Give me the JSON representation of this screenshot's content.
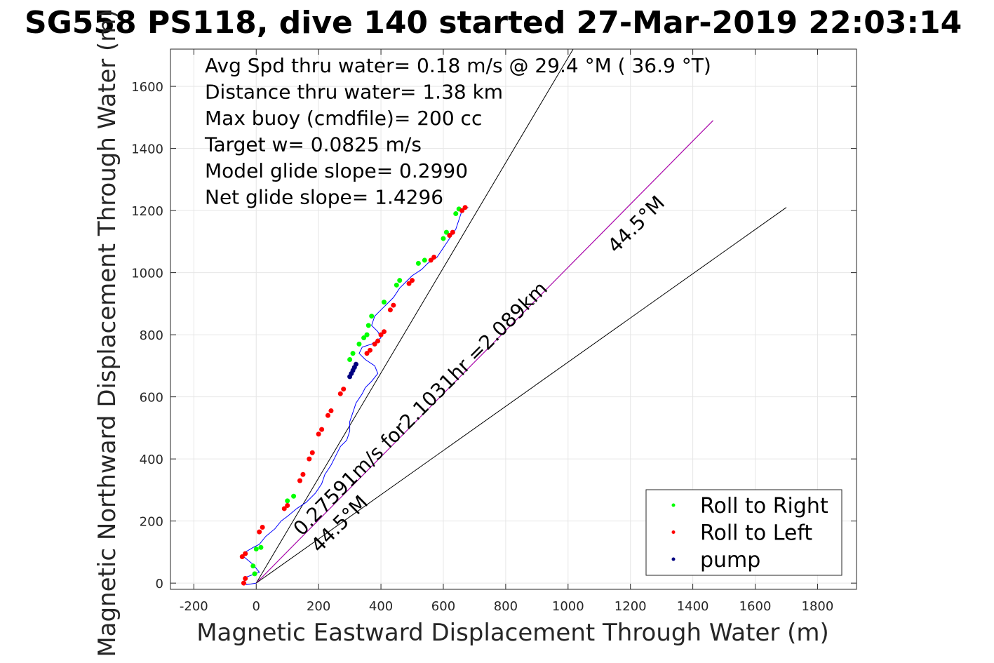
{
  "chart_data": {
    "type": "scatter",
    "title": "SG558 PS118, dive 140 started 27-Mar-2019 22:03:14",
    "xlabel": "Magnetic Eastward Displacement Through Water (m)",
    "ylabel": "Magnetic Northward Displacement Through Water (m)",
    "xlim": [
      -275,
      1925
    ],
    "ylim": [
      -20,
      1720
    ],
    "xticks": [
      -200,
      0,
      200,
      400,
      600,
      800,
      1000,
      1200,
      1400,
      1600,
      1800
    ],
    "yticks": [
      0,
      200,
      400,
      600,
      800,
      1000,
      1200,
      1400,
      1600
    ],
    "grid": true,
    "legend_position": "bottom-right",
    "info_lines": [
      "Avg Spd thru water=  0.18 m/s @  29.4 °M ( 36.9 °T)",
      "Distance thru water=  1.38 km",
      "Max buoy (cmdfile)= 200 cc",
      "Target w= 0.0825 m/s",
      "Model glide slope= 0.2990",
      "Net glide slope= 1.4296"
    ],
    "annotations": {
      "course_label_upper": "44.5°M",
      "course_label_lower": "44.5°M",
      "current_label": "0.27591m/s for2.1031hr =2.089km"
    },
    "reference_lines": [
      {
        "name": "bound-left",
        "from": [
          0,
          0
        ],
        "to": [
          1170,
          1980
        ],
        "color": "#000000"
      },
      {
        "name": "course",
        "from": [
          0,
          0
        ],
        "to": [
          1465,
          1490
        ],
        "color": "#000000"
      },
      {
        "name": "current",
        "from": [
          0,
          0
        ],
        "to": [
          1465,
          1490
        ],
        "color": "#c000c0"
      },
      {
        "name": "bound-right",
        "from": [
          0,
          0
        ],
        "to": [
          1700,
          1210
        ],
        "color": "#000000"
      }
    ],
    "track": {
      "color": "#0000ff",
      "points": [
        [
          0,
          0
        ],
        [
          -30,
          -5
        ],
        [
          -40,
          5
        ],
        [
          -30,
          20
        ],
        [
          10,
          35
        ],
        [
          -10,
          60
        ],
        [
          -40,
          85
        ],
        [
          -35,
          100
        ],
        [
          -10,
          115
        ],
        [
          10,
          125
        ],
        [
          30,
          150
        ],
        [
          60,
          175
        ],
        [
          80,
          200
        ],
        [
          100,
          215
        ],
        [
          130,
          240
        ],
        [
          160,
          260
        ],
        [
          190,
          290
        ],
        [
          210,
          320
        ],
        [
          220,
          350
        ],
        [
          240,
          380
        ],
        [
          255,
          410
        ],
        [
          270,
          440
        ],
        [
          290,
          460
        ],
        [
          300,
          490
        ],
        [
          300,
          520
        ],
        [
          310,
          550
        ],
        [
          320,
          580
        ],
        [
          340,
          610
        ],
        [
          350,
          630
        ],
        [
          370,
          650
        ],
        [
          390,
          675
        ],
        [
          380,
          700
        ],
        [
          350,
          720
        ],
        [
          330,
          740
        ],
        [
          340,
          760
        ],
        [
          370,
          770
        ],
        [
          400,
          790
        ],
        [
          390,
          810
        ],
        [
          370,
          830
        ],
        [
          380,
          860
        ],
        [
          400,
          880
        ],
        [
          420,
          900
        ],
        [
          440,
          920
        ],
        [
          460,
          950
        ],
        [
          480,
          970
        ],
        [
          500,
          990
        ],
        [
          530,
          1010
        ],
        [
          550,
          1030
        ],
        [
          580,
          1050
        ],
        [
          600,
          1080
        ],
        [
          620,
          1110
        ],
        [
          640,
          1140
        ],
        [
          650,
          1170
        ],
        [
          660,
          1200
        ],
        [
          680,
          1210
        ]
      ]
    },
    "series": [
      {
        "name": "Roll to Right",
        "color": "#00ff00",
        "marker": "dot",
        "points": [
          [
            -5,
            30
          ],
          [
            -10,
            55
          ],
          [
            0,
            110
          ],
          [
            15,
            115
          ],
          [
            100,
            265
          ],
          [
            120,
            280
          ],
          [
            300,
            720
          ],
          [
            310,
            740
          ],
          [
            330,
            770
          ],
          [
            345,
            790
          ],
          [
            355,
            800
          ],
          [
            360,
            830
          ],
          [
            370,
            860
          ],
          [
            410,
            905
          ],
          [
            450,
            960
          ],
          [
            460,
            975
          ],
          [
            520,
            1030
          ],
          [
            540,
            1040
          ],
          [
            600,
            1110
          ],
          [
            610,
            1130
          ],
          [
            640,
            1190
          ],
          [
            650,
            1205
          ]
        ]
      },
      {
        "name": "Roll to Left",
        "color": "#ff0000",
        "marker": "dot",
        "points": [
          [
            -40,
            0
          ],
          [
            -35,
            15
          ],
          [
            -45,
            85
          ],
          [
            -35,
            95
          ],
          [
            10,
            165
          ],
          [
            20,
            180
          ],
          [
            90,
            240
          ],
          [
            100,
            250
          ],
          [
            140,
            330
          ],
          [
            150,
            350
          ],
          [
            170,
            400
          ],
          [
            180,
            420
          ],
          [
            200,
            480
          ],
          [
            210,
            495
          ],
          [
            230,
            540
          ],
          [
            240,
            555
          ],
          [
            270,
            610
          ],
          [
            280,
            625
          ],
          [
            355,
            740
          ],
          [
            365,
            750
          ],
          [
            380,
            770
          ],
          [
            390,
            780
          ],
          [
            400,
            800
          ],
          [
            410,
            810
          ],
          [
            430,
            880
          ],
          [
            440,
            895
          ],
          [
            490,
            965
          ],
          [
            500,
            975
          ],
          [
            560,
            1040
          ],
          [
            570,
            1050
          ],
          [
            620,
            1120
          ],
          [
            630,
            1130
          ],
          [
            660,
            1200
          ],
          [
            670,
            1210
          ]
        ]
      },
      {
        "name": "pump",
        "color": "#000080",
        "marker": "dot",
        "points": [
          [
            300,
            665
          ],
          [
            305,
            675
          ],
          [
            310,
            685
          ],
          [
            315,
            695
          ],
          [
            320,
            705
          ]
        ]
      }
    ]
  }
}
